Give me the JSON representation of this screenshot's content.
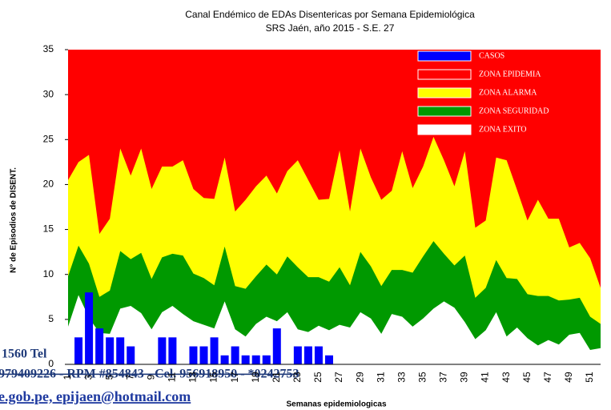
{
  "chart_data": {
    "type": "endemic",
    "title": "Canal Endémico de EDAs Disentericas por Semana Epidemiológica",
    "subtitle": "SRS Jaén, año 2015 - S.E.   27",
    "y_label": "N° de Episodios de DISENT.",
    "x_label": "Semanas epidemiologicas",
    "categories": [
      1,
      null,
      3,
      null,
      5,
      null,
      7,
      null,
      9,
      null,
      11,
      null,
      13,
      null,
      15,
      null,
      17,
      null,
      19,
      null,
      21,
      null,
      23,
      null,
      25,
      null,
      27,
      null,
      29,
      null,
      31,
      null,
      33,
      null,
      35,
      null,
      37,
      null,
      39,
      null,
      41,
      null,
      43,
      null,
      45,
      null,
      47,
      null,
      49,
      null,
      51,
      null
    ],
    "ylim": [
      0,
      35
    ],
    "yticks": [
      0,
      5,
      10,
      15,
      20,
      25,
      30,
      35
    ],
    "series": [
      {
        "name": "CASOS",
        "type": "bar",
        "color": "#0000ff",
        "values": [
          0,
          3,
          8,
          4,
          3,
          3,
          2,
          0,
          0,
          3,
          3,
          0,
          2,
          2,
          3,
          1,
          2,
          1,
          1,
          1,
          4,
          0,
          2,
          2,
          2,
          1,
          0,
          null,
          null,
          null,
          null,
          null,
          null,
          null,
          null,
          null,
          null,
          null,
          null,
          null,
          null,
          null,
          null,
          null,
          null,
          null,
          null,
          null,
          null,
          null,
          null,
          null
        ]
      },
      {
        "name": "ZONA EPIDEMIA",
        "type": "background",
        "color": "#ff0000"
      },
      {
        "name": "ZONA ALARMA",
        "type": "area",
        "color": "#ffff00",
        "values": [
          20.5,
          22.5,
          23.3,
          14.5,
          16.2,
          24,
          21,
          24,
          19.5,
          22,
          22,
          22.7,
          19.5,
          18.5,
          18.4,
          23,
          17,
          18.3,
          19.8,
          21,
          19,
          21.5,
          22.7,
          20.5,
          18.3,
          18.4,
          23.8,
          17,
          24,
          20.8,
          18.3,
          19.3,
          23.7,
          19.6,
          22,
          25.3,
          22.7,
          19.8,
          23.7,
          15.2,
          16,
          23,
          22.7,
          19.4,
          16,
          18.3,
          16.2,
          16.2,
          13,
          13.5,
          11.8,
          8.5
        ]
      },
      {
        "name": "ZONA SEGURIDAD",
        "type": "area",
        "color": "#009900",
        "values": [
          9.8,
          13.2,
          11.2,
          7.5,
          8.2,
          12.6,
          11.7,
          12.4,
          9.5,
          11.9,
          12.3,
          12.1,
          10.1,
          9.6,
          8.8,
          13.1,
          8.7,
          8.4,
          9.8,
          11.1,
          10,
          12,
          10.8,
          9.7,
          9.7,
          9.2,
          10.8,
          8.8,
          12.5,
          10.9,
          8.7,
          10.5,
          10.5,
          10.2,
          12,
          13.7,
          12.3,
          11,
          12.1,
          7.4,
          8.5,
          11.6,
          9.6,
          9.5,
          7.8,
          7.6,
          7.6,
          7.1,
          7.2,
          7.4,
          5.3,
          4.5
        ]
      },
      {
        "name": "ZONA EXITO",
        "type": "area",
        "color": "#ffffff",
        "values": [
          4.2,
          7.7,
          5.2,
          3.5,
          3.4,
          6.2,
          6.5,
          5.7,
          3.9,
          5.8,
          6.5,
          5.6,
          4.8,
          4.4,
          4,
          7,
          3.9,
          3.1,
          4.5,
          5.3,
          4.8,
          5.8,
          3.9,
          3.6,
          4.3,
          3.8,
          4.4,
          4.1,
          5.8,
          5.1,
          3.4,
          5.6,
          5.3,
          4.2,
          5.1,
          6.2,
          7,
          6.3,
          4.7,
          2.8,
          3.8,
          5.8,
          3.1,
          4.1,
          2.9,
          2.1,
          2.7,
          2.2,
          3.3,
          3.5,
          1.6,
          1.8
        ]
      }
    ]
  },
  "overlay": [
    "1560 Tel",
    "979409226 - RPM #854843 - Cel. 956918950 - *0242753",
    "e.gob.pe, epijaen@hotmail.com"
  ]
}
